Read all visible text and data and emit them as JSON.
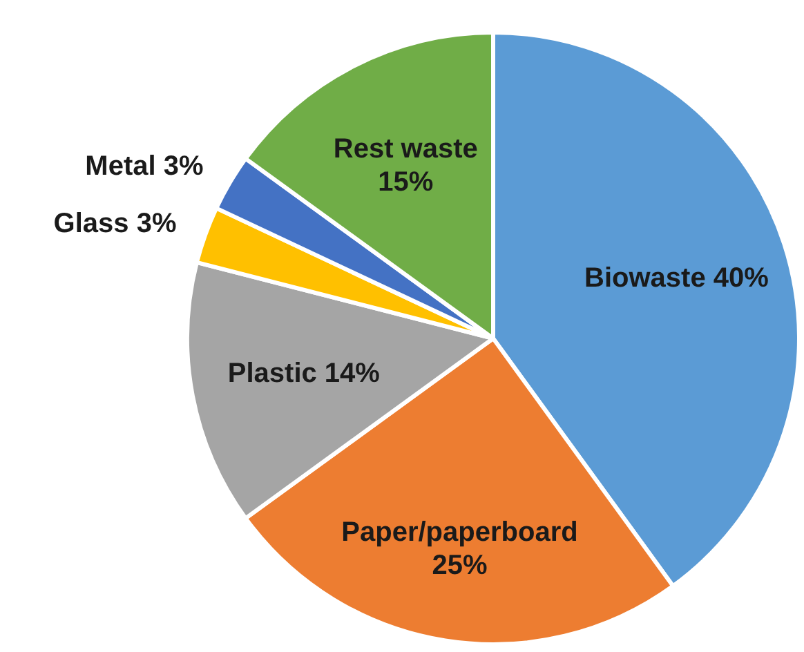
{
  "chart_data": {
    "type": "pie",
    "categories": [
      "Biowaste",
      "Paper/paperboard",
      "Plastic",
      "Glass",
      "Metal",
      "Rest waste"
    ],
    "values": [
      40,
      25,
      14,
      3,
      3,
      15
    ],
    "value_labels": [
      "40%",
      "25%",
      "14%",
      "3%",
      "3%",
      "15%"
    ],
    "colors": [
      "#5b9bd5",
      "#ed7d31",
      "#a5a5a5",
      "#ffc000",
      "#4472c4",
      "#70ad47"
    ],
    "legend": false
  }
}
